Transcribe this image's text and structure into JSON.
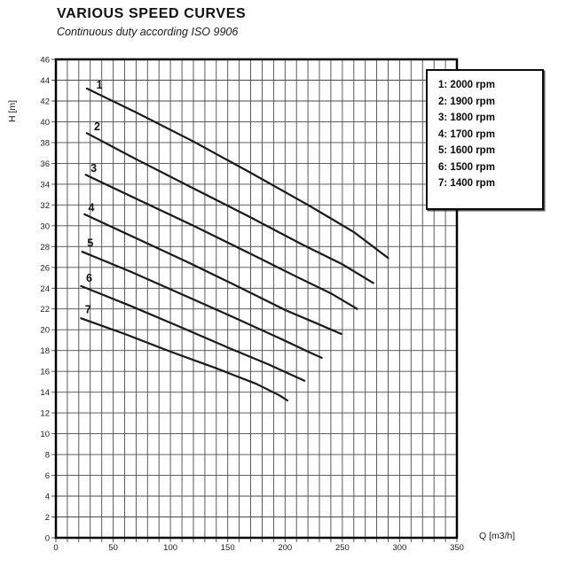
{
  "header": {
    "title": "VARIOUS SPEED CURVES",
    "subtitle": "Continuous duty according ISO 9906"
  },
  "legend": {
    "items": [
      {
        "label": "1: 2000 rpm"
      },
      {
        "label": "2: 1900 rpm"
      },
      {
        "label": "3: 1800 rpm"
      },
      {
        "label": "4: 1700 rpm"
      },
      {
        "label": "5: 1600 rpm"
      },
      {
        "label": "6: 1500 rpm"
      },
      {
        "label": "7: 1400 rpm"
      }
    ]
  },
  "chart_data": {
    "type": "line",
    "title": "VARIOUS SPEED CURVES",
    "subtitle": "Continuous duty according ISO 9906",
    "xlabel": "Q [m3/h]",
    "ylabel": "H [m]",
    "xlim": [
      0,
      350
    ],
    "ylim": [
      0,
      46
    ],
    "x_ticks": [
      0,
      50,
      100,
      150,
      200,
      250,
      300,
      350
    ],
    "y_ticks": [
      0,
      2,
      4,
      6,
      8,
      10,
      12,
      14,
      16,
      18,
      20,
      22,
      24,
      26,
      28,
      30,
      32,
      34,
      36,
      38,
      40,
      42,
      44,
      46
    ],
    "grid": {
      "on": true,
      "x_step": 10,
      "y_step": 2
    },
    "legend_position": "top-right",
    "series": [
      {
        "name": "1",
        "rpm": "2000 rpm",
        "label_at": [
          38,
          43.2
        ],
        "points": [
          [
            27,
            43.2
          ],
          [
            70,
            40.9
          ],
          [
            120,
            38.1
          ],
          [
            170,
            35.1
          ],
          [
            220,
            32.0
          ],
          [
            260,
            29.4
          ],
          [
            290,
            26.9
          ]
        ]
      },
      {
        "name": "2",
        "rpm": "1900 rpm",
        "label_at": [
          36,
          39.2
        ],
        "points": [
          [
            27,
            38.9
          ],
          [
            70,
            36.4
          ],
          [
            120,
            33.6
          ],
          [
            170,
            30.8
          ],
          [
            215,
            28.2
          ],
          [
            250,
            26.3
          ],
          [
            277,
            24.5
          ]
        ]
      },
      {
        "name": "3",
        "rpm": "1800 rpm",
        "label_at": [
          33,
          35.2
        ],
        "points": [
          [
            26,
            34.9
          ],
          [
            70,
            32.6
          ],
          [
            120,
            30.0
          ],
          [
            170,
            27.3
          ],
          [
            210,
            25.1
          ],
          [
            240,
            23.5
          ],
          [
            263,
            22.0
          ]
        ]
      },
      {
        "name": "4",
        "rpm": "1700 rpm",
        "label_at": [
          31,
          31.4
        ],
        "points": [
          [
            25,
            31.1
          ],
          [
            70,
            28.8
          ],
          [
            115,
            26.5
          ],
          [
            160,
            24.1
          ],
          [
            200,
            21.9
          ],
          [
            230,
            20.5
          ],
          [
            249,
            19.6
          ]
        ]
      },
      {
        "name": "5",
        "rpm": "1600 rpm",
        "label_at": [
          30,
          28.0
        ],
        "points": [
          [
            23,
            27.5
          ],
          [
            65,
            25.6
          ],
          [
            110,
            23.4
          ],
          [
            155,
            21.2
          ],
          [
            195,
            19.2
          ],
          [
            220,
            17.9
          ],
          [
            232,
            17.3
          ]
        ]
      },
      {
        "name": "6",
        "rpm": "1500 rpm",
        "label_at": [
          29,
          24.6
        ],
        "points": [
          [
            22,
            24.2
          ],
          [
            65,
            22.3
          ],
          [
            110,
            20.2
          ],
          [
            150,
            18.3
          ],
          [
            185,
            16.7
          ],
          [
            205,
            15.7
          ],
          [
            217,
            15.1
          ]
        ]
      },
      {
        "name": "7",
        "rpm": "1400 rpm",
        "label_at": [
          28,
          21.6
        ],
        "points": [
          [
            22,
            21.1
          ],
          [
            60,
            19.6
          ],
          [
            100,
            17.9
          ],
          [
            140,
            16.3
          ],
          [
            175,
            14.8
          ],
          [
            195,
            13.7
          ],
          [
            202,
            13.2
          ]
        ]
      }
    ],
    "colors": {
      "curve": "#1a1a1a",
      "grid": "#4a4a4a",
      "frame": "#000000",
      "text": "#1a1a1a",
      "background": "#ffffff"
    }
  }
}
